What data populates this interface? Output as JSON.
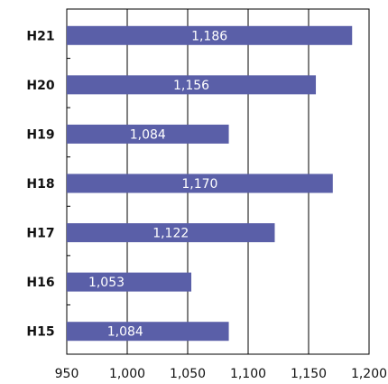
{
  "chart_data": {
    "type": "bar",
    "orientation": "horizontal",
    "categories": [
      "H21",
      "H20",
      "H19",
      "H18",
      "H17",
      "H16",
      "H15"
    ],
    "values": [
      1186,
      1156,
      1084,
      1170,
      1122,
      1053,
      1084
    ],
    "value_labels": [
      "1,186",
      "1,156",
      "1,084",
      "1,170",
      "1,122",
      "1,053",
      "1,084"
    ],
    "xlim": [
      950,
      1200
    ],
    "xticks": [
      950,
      1000,
      1050,
      1100,
      1150,
      1200
    ],
    "xtick_labels": [
      "950",
      "1,000",
      "1,050",
      "1,100",
      "1,150",
      "1,200"
    ],
    "grid": "vertical",
    "legend": "none",
    "title": "",
    "xlabel": "",
    "ylabel": "",
    "colors": {
      "bar": "#5a5fa8",
      "grid": "#000000",
      "data_label": "#ffffff"
    }
  }
}
